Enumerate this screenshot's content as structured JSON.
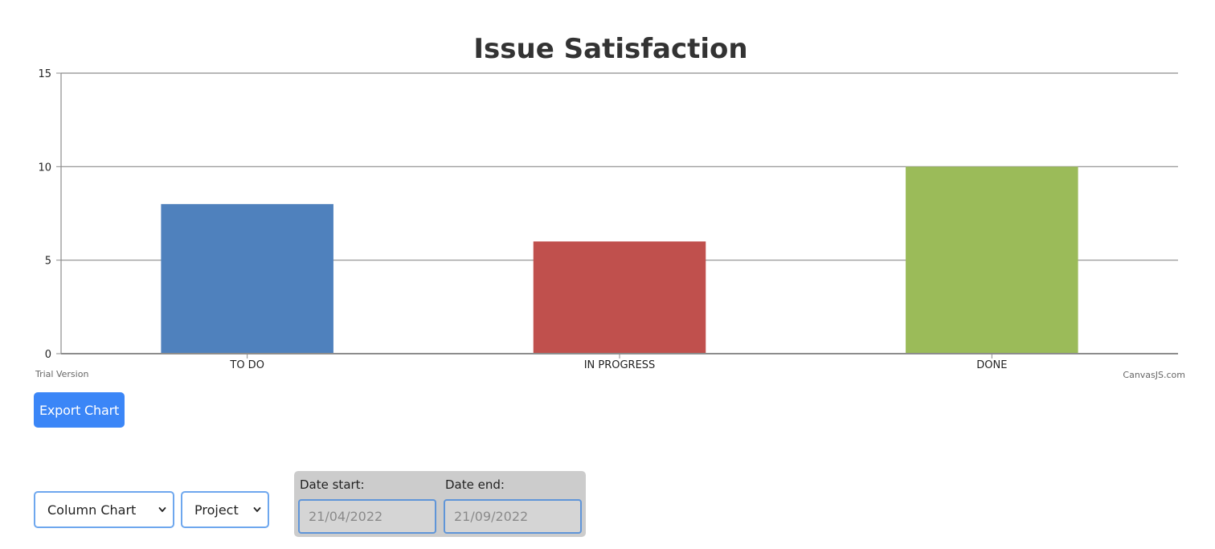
{
  "chart_data": {
    "type": "bar",
    "title": "Issue Satisfaction",
    "categories": [
      "TO DO",
      "IN PROGRESS",
      "DONE"
    ],
    "values": [
      8,
      6,
      10
    ],
    "colors": [
      "#4f81bd",
      "#c0504d",
      "#9bbb59"
    ],
    "ylim": [
      0,
      15
    ],
    "yticks": [
      0,
      5,
      10,
      15
    ],
    "xlabel": "",
    "ylabel": "",
    "grid": true,
    "legend": "none"
  },
  "chart_footer": {
    "trial_text": "Trial Version",
    "credit_text": "CanvasJS.com"
  },
  "actions": {
    "export_label": "Export Chart"
  },
  "controls": {
    "chart_type_selected": "Column Chart",
    "filter_selected": "Project",
    "date_start_label": "Date start:",
    "date_end_label": "Date end:",
    "date_start_value": "21/04/2022",
    "date_end_value": "21/09/2022"
  },
  "colors": {
    "accent": "#3b86f7",
    "select_border": "#6ea7ee",
    "date_panel": "#cccccc"
  },
  "icons": {
    "select_arrow": "chevron-down-icon"
  }
}
